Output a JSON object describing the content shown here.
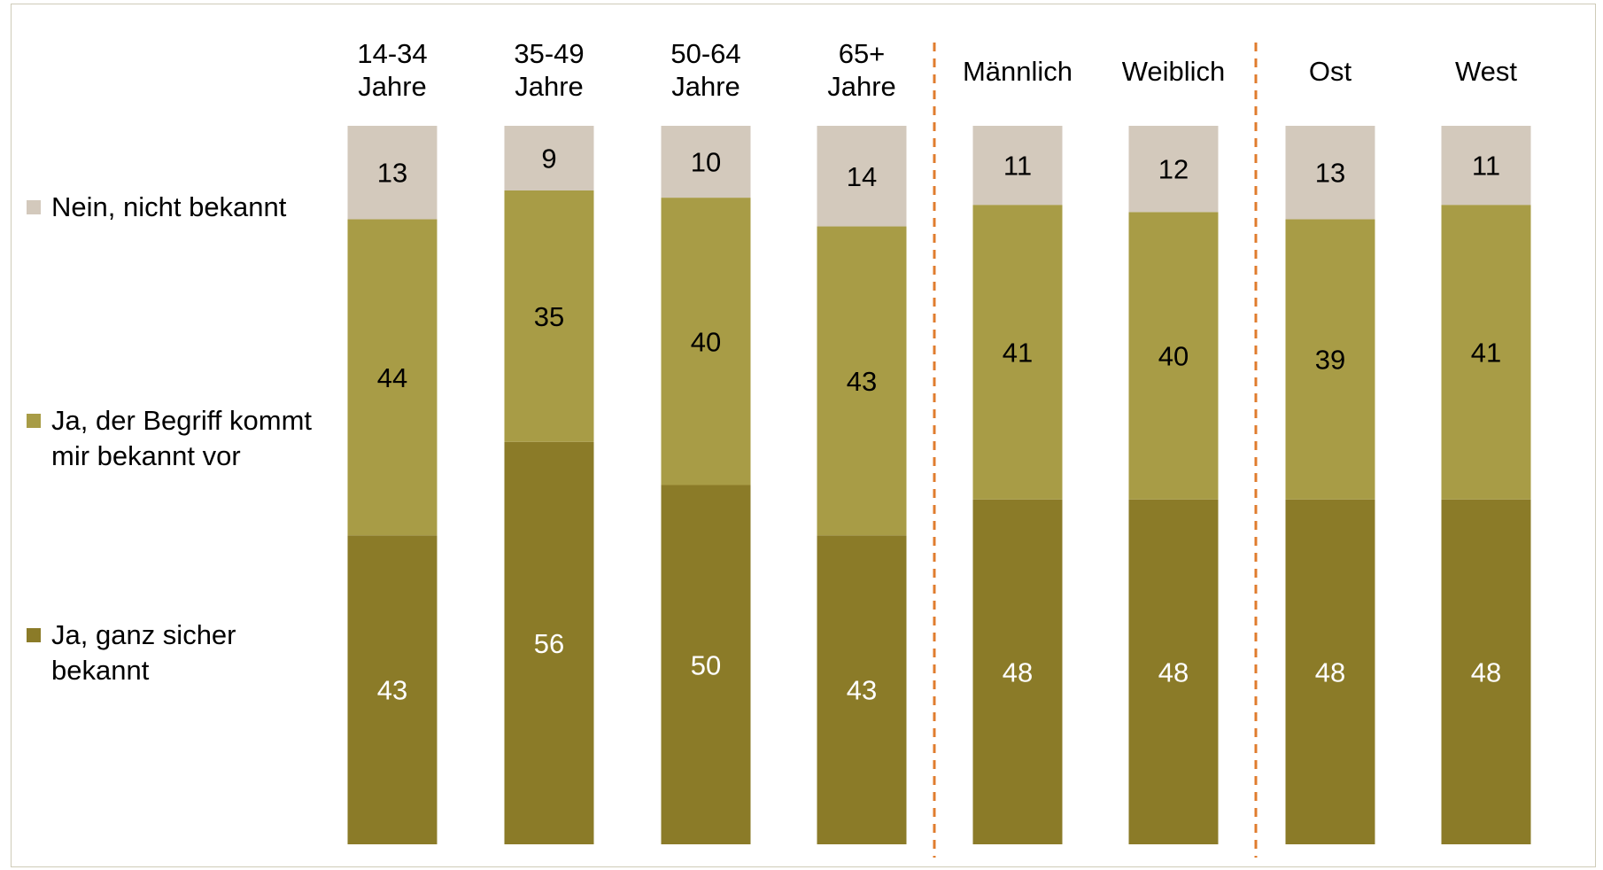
{
  "colors": {
    "nein": "#d3c9bc",
    "ja_vor": "#a89c46",
    "ja_sicher": "#8b7b28",
    "divider": "#e07c2e",
    "frame": "#cfcbb8"
  },
  "chart_data": {
    "type": "bar",
    "stacked": true,
    "value_unit": "percent",
    "categories": [
      "14-34 Jahre",
      "35-49 Jahre",
      "50-64 Jahre",
      "65+ Jahre",
      "Männlich",
      "Weiblich",
      "Ost",
      "West"
    ],
    "category_lines": [
      [
        "14-34",
        "Jahre"
      ],
      [
        "35-49",
        "Jahre"
      ],
      [
        "50-64",
        "Jahre"
      ],
      [
        "65+",
        "Jahre"
      ],
      [
        "Männlich"
      ],
      [
        "Weiblich"
      ],
      [
        "Ost"
      ],
      [
        "West"
      ]
    ],
    "groups": [
      [
        "14-34 Jahre",
        "35-49 Jahre",
        "50-64 Jahre",
        "65+ Jahre"
      ],
      [
        "Männlich",
        "Weiblich"
      ],
      [
        "Ost",
        "West"
      ]
    ],
    "series": [
      {
        "name": "Ja, ganz sicher bekannt",
        "color_key": "ja_sicher",
        "label_color": "#ffffff",
        "values": [
          43,
          56,
          50,
          43,
          48,
          48,
          48,
          48
        ]
      },
      {
        "name": "Ja, der Begriff kommt mir bekannt vor",
        "color_key": "ja_vor",
        "label_color": "#000000",
        "values": [
          44,
          35,
          40,
          43,
          41,
          40,
          39,
          41
        ]
      },
      {
        "name": "Nein, nicht bekannt",
        "color_key": "nein",
        "label_color": "#000000",
        "values": [
          13,
          9,
          10,
          14,
          11,
          12,
          13,
          11
        ]
      }
    ],
    "legend_position": "left",
    "grid": false,
    "value_axis_visible": false
  }
}
